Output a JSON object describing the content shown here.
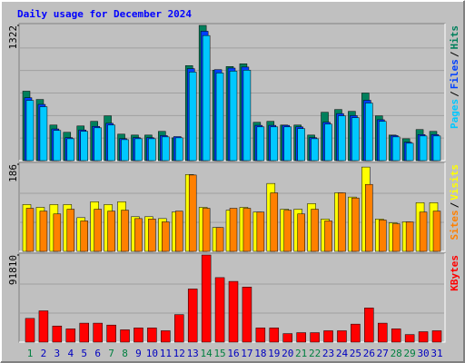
{
  "chart_data": [
    {
      "type": "bar",
      "title": "Daily usage for December 2024",
      "ylim": [
        0,
        1322
      ],
      "yticks": [
        1322
      ],
      "legend_separator": "/",
      "series": [
        {
          "name": "Hits",
          "color": "#00805c",
          "values": [
            679,
            598,
            348,
            277,
            339,
            384,
            438,
            259,
            250,
            250,
            286,
            223,
            929,
            1322,
            884,
            920,
            947,
            375,
            384,
            348,
            348,
            250,
            473,
            500,
            482,
            661,
            438,
            250,
            214,
            304,
            286
          ]
        },
        {
          "name": "Files",
          "color": "#0040ff",
          "values": [
            615,
            550,
            310,
            225,
            300,
            335,
            365,
            215,
            225,
            225,
            245,
            235,
            900,
            1265,
            890,
            905,
            915,
            345,
            345,
            345,
            330,
            225,
            375,
            460,
            440,
            590,
            400,
            245,
            180,
            255,
            255
          ]
        },
        {
          "name": "Pages",
          "color": "#00c8ff",
          "values": [
            589,
            527,
            295,
            214,
            286,
            321,
            348,
            205,
            214,
            214,
            232,
            223,
            866,
            1223,
            857,
            875,
            884,
            330,
            330,
            330,
            313,
            214,
            357,
            438,
            420,
            563,
            384,
            232,
            170,
            241,
            241
          ]
        }
      ]
    },
    {
      "type": "bar",
      "ylim": [
        0,
        186
      ],
      "yticks": [
        186
      ],
      "legend_separator": "/",
      "series": [
        {
          "name": "Visits",
          "color": "#ffff00",
          "values": [
            100,
            94,
            100,
            100,
            72,
            106,
            100,
            106,
            74,
            74,
            70,
            84,
            164,
            94,
            51,
            88,
            94,
            84,
            145,
            90,
            90,
            102,
            69,
            125,
            116,
            180,
            69,
            61,
            63,
            104,
            104
          ]
        },
        {
          "name": "Sites",
          "color": "#ff8000",
          "values": [
            92,
            86,
            80,
            90,
            65,
            90,
            86,
            88,
            70,
            69,
            63,
            86,
            163,
            92,
            51,
            92,
            92,
            84,
            125,
            88,
            80,
            90,
            65,
            125,
            114,
            143,
            67,
            59,
            63,
            84,
            86
          ]
        }
      ]
    },
    {
      "type": "bar",
      "ylim": [
        0,
        91810
      ],
      "yticks": [
        91810
      ],
      "categories": [
        "1",
        "2",
        "3",
        "4",
        "5",
        "6",
        "7",
        "8",
        "9",
        "10",
        "11",
        "12",
        "13",
        "14",
        "15",
        "16",
        "17",
        "18",
        "19",
        "20",
        "21",
        "22",
        "23",
        "24",
        "25",
        "26",
        "27",
        "28",
        "29",
        "30",
        "31"
      ],
      "category_colors": [
        "#008040",
        "#0000c0",
        "#0000c0",
        "#0000c0",
        "#0000c0",
        "#0000c0",
        "#008040",
        "#008040",
        "#0000c0",
        "#0000c0",
        "#0000c0",
        "#0000c0",
        "#0000c0",
        "#008040",
        "#008040",
        "#0000c0",
        "#0000c0",
        "#0000c0",
        "#0000c0",
        "#0000c0",
        "#008040",
        "#008040",
        "#0000c0",
        "#0000c0",
        "#0000c0",
        "#0000c0",
        "#0000c0",
        "#008040",
        "#008040",
        "#0000c0",
        "#0000c0"
      ],
      "series": [
        {
          "name": "KBytes",
          "color": "#ff0000",
          "values": [
            25000,
            33000,
            17000,
            14000,
            20000,
            20000,
            18000,
            13000,
            15000,
            15000,
            12000,
            29000,
            56000,
            91810,
            68000,
            64000,
            58000,
            15000,
            15000,
            9000,
            10000,
            10000,
            12000,
            12000,
            19000,
            36000,
            20000,
            14000,
            8000,
            11000,
            12000
          ]
        }
      ]
    }
  ]
}
